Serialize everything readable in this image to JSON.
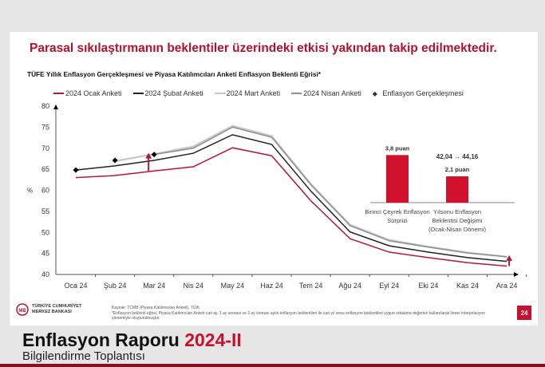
{
  "headline": "Parasal sıkılaştırmanın beklentiler üzerindeki etkisi yakından takip edilmektedir.",
  "chart_data": [
    {
      "type": "line",
      "title": "TÜFE Yıllık Enflasyon Gerçekleşmesi ve Piyasa Katılımcıları Anketi Enflasyon Beklenti Eğrisi*",
      "ylabel": "%",
      "ylim": [
        40,
        80
      ],
      "yticks": [
        40,
        45,
        50,
        55,
        60,
        65,
        70,
        75,
        80
      ],
      "categories": [
        "Oca 24",
        "Şub 24",
        "Mar 24",
        "Nis 24",
        "May 24",
        "Haz 24",
        "Tem 24",
        "Ağu 24",
        "Eyl 24",
        "Eki 24",
        "Kas 24",
        "Ara 24"
      ],
      "legend_position": "top",
      "series": [
        {
          "name": "2024 Ocak Anketi",
          "color": "#b5173a",
          "values": [
            63.0,
            63.5,
            64.6,
            65.6,
            70.1,
            68.2,
            57.5,
            48.5,
            45.3,
            44.0,
            42.8,
            42.0
          ]
        },
        {
          "name": "2024 Şubat Anketi",
          "color": "#222222",
          "values": [
            64.8,
            65.8,
            67.1,
            68.8,
            73.2,
            70.9,
            59.8,
            50.1,
            46.8,
            45.3,
            44.0,
            43.1
          ]
        },
        {
          "name": "2024 Mart Anketi",
          "color": "#c8c8c0",
          "values": [
            null,
            66.9,
            68.6,
            70.4,
            75.3,
            72.9,
            61.5,
            51.8,
            48.2,
            46.6,
            45.2,
            44.2
          ]
        },
        {
          "name": "2024 Nisan Anketi",
          "color": "#8a9099",
          "values": [
            null,
            null,
            68.5,
            70.0,
            75.0,
            72.6,
            61.3,
            51.6,
            48.0,
            46.5,
            45.1,
            44.2
          ]
        }
      ],
      "markers": {
        "name": "Enflasyon Gerçekleşmesi",
        "values": [
          64.8,
          67.1,
          68.5,
          null,
          null,
          null,
          null,
          null,
          null,
          null,
          null,
          null
        ]
      },
      "arrows": [
        {
          "category": "Mar 24",
          "from": 64.6,
          "to": 68.5
        },
        {
          "category": "Ara 24",
          "from": 42.0,
          "to": 44.2
        }
      ]
    },
    {
      "type": "bar",
      "categories": [
        "Birinci Çeyrek Enflasyon Sürprizi",
        "Yılsonu Enflasyon Beklentisi Değişimi (Ocak-Nisan Dönemi)"
      ],
      "category_lines": [
        [
          "Birinci Çeyrek Enflasyon",
          "Sürprizi"
        ],
        [
          "Yılsonu Enflasyon",
          "Beklentisi Değişimi",
          "(Ocak-Nisan Dönemi)"
        ]
      ],
      "values": [
        3.8,
        2.1
      ],
      "data_labels": [
        "3,8 puan",
        "2,1 puan"
      ],
      "annotation": "42,04 → 44,16",
      "color": "#d0112b"
    }
  ],
  "footer": {
    "logo_line1": "TÜRKİYE CUMHURİYET",
    "logo_line2": "MERKEZ BANKASI",
    "logo_mark": "TCMB",
    "source": "Kaynak: TCMB (Piyasa Katılımcıları Anketi), TÜİK.",
    "note": "*Enflasyon beklenti eğrisi, Piyasa Katılımcıları Anketi cari ay, 1 ay sonrası ve 2 ay sonrası aylık enflasyon beklentileri ile cari yıl sonu enflasyon beklentileri uygun ortalama değerleri kullanılarak lineer interpolasyon yöntemiyle oluşturulmuştur.",
    "page": "24"
  },
  "report": {
    "title": "Enflasyon Raporu",
    "period": "2024-II",
    "subtitle": "Bilgilendirme Toplantısı"
  }
}
